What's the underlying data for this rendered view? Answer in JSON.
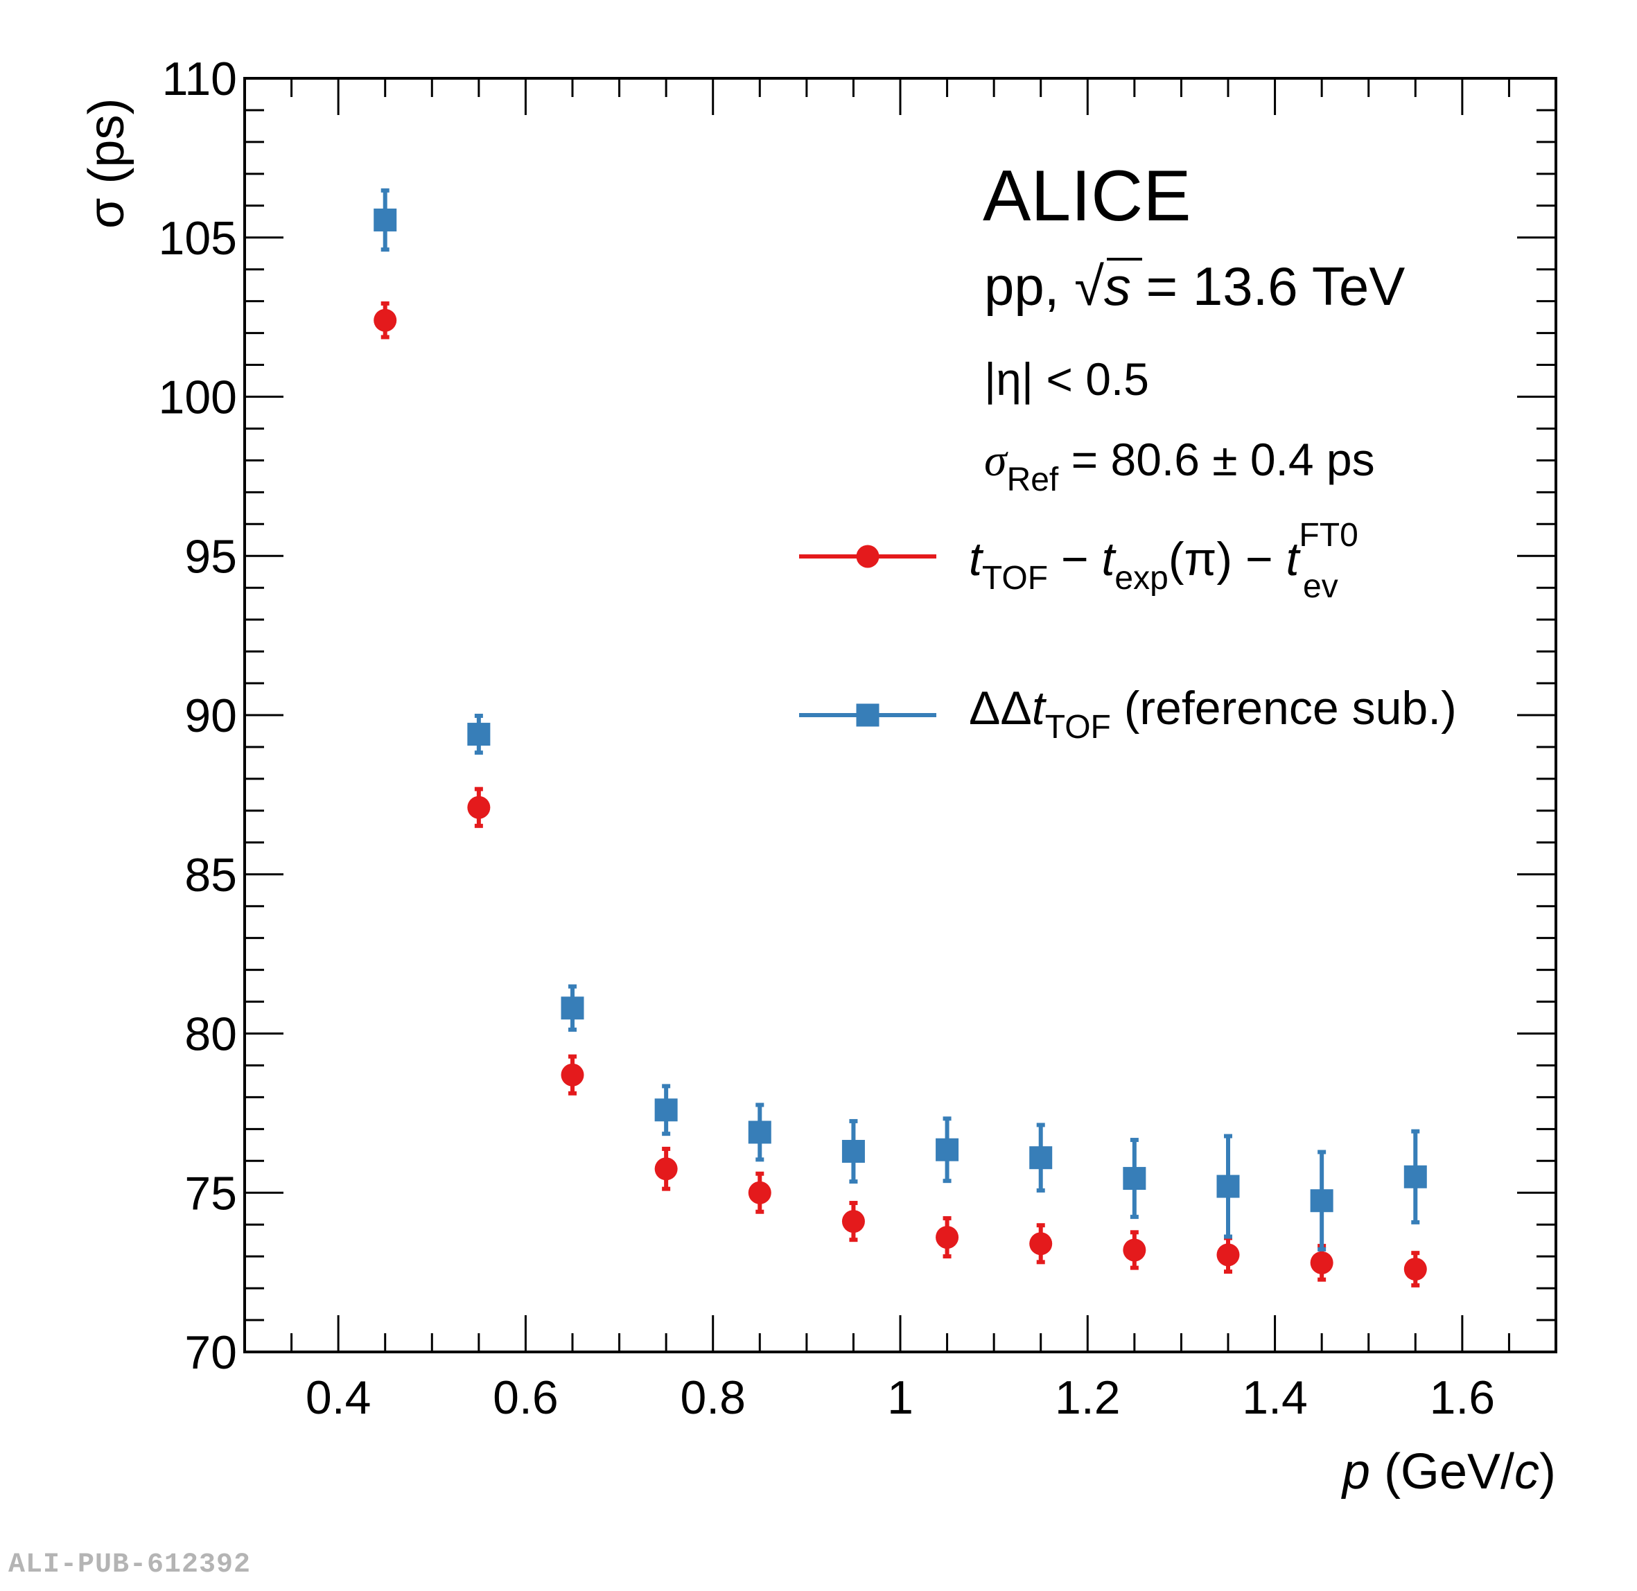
{
  "chart_data": {
    "type": "scatter",
    "title": "",
    "xlabel": "p (GeV/c)",
    "xlabel_parts": {
      "var": "p",
      "unit_open": " (GeV/",
      "unit_var": "c",
      "unit_close": ")"
    },
    "ylabel": "σ (ps)",
    "xlim": [
      0.3,
      1.7
    ],
    "ylim": [
      70,
      110
    ],
    "x_major_ticks": [
      0.4,
      0.6,
      0.8,
      1.0,
      1.2,
      1.4,
      1.6
    ],
    "x_tick_labels": [
      "0.4",
      "0.6",
      "0.8",
      "1",
      "1.2",
      "1.4",
      "1.6"
    ],
    "x_minor_step": 0.05,
    "y_major_ticks": [
      70,
      75,
      80,
      85,
      90,
      95,
      100,
      105,
      110
    ],
    "y_tick_labels": [
      "70",
      "75",
      "80",
      "85",
      "90",
      "95",
      "100",
      "105",
      "110"
    ],
    "y_minor_step": 1,
    "grid": false,
    "legend_placement": "right-middle",
    "annotations": {
      "experiment": "ALICE",
      "system_prefix": "pp, ",
      "sqrt_symbol": "√",
      "sqrt_var": "s",
      "system_suffix": " = 13.6 TeV",
      "eta_cut": "|η| < 0.5",
      "sigma_ref_symbol": "σ",
      "sigma_ref_sub": "Ref",
      "sigma_ref_value": " = 80.6 ± 0.4 ps"
    },
    "series": [
      {
        "name": "t_TOF − t_exp(π) − t_ev^FT0",
        "legend_parts": [
          "t",
          "TOF",
          " − ",
          "t",
          "exp",
          "(π) − ",
          "t",
          "FT0",
          "ev"
        ],
        "marker": "circle",
        "color": "#E41A1C",
        "x": [
          0.45,
          0.55,
          0.65,
          0.75,
          0.85,
          0.95,
          1.05,
          1.15,
          1.25,
          1.35,
          1.45,
          1.55
        ],
        "y": [
          102.4,
          87.1,
          78.7,
          75.75,
          75.0,
          74.1,
          73.6,
          73.4,
          73.2,
          73.05,
          72.8,
          72.6
        ],
        "err": [
          0.55,
          0.6,
          0.6,
          0.65,
          0.62,
          0.6,
          0.62,
          0.6,
          0.58,
          0.55,
          0.55,
          0.53
        ]
      },
      {
        "name": "ΔΔt_TOF (reference sub.)",
        "legend_parts": [
          "ΔΔ",
          "t",
          "TOF",
          " (reference sub.)"
        ],
        "marker": "square",
        "color": "#377EB8",
        "x": [
          0.45,
          0.55,
          0.65,
          0.75,
          0.85,
          0.95,
          1.05,
          1.15,
          1.25,
          1.35,
          1.45,
          1.55
        ],
        "y": [
          105.55,
          89.4,
          80.8,
          77.6,
          76.9,
          76.3,
          76.35,
          76.1,
          75.45,
          75.2,
          74.75,
          75.5
        ],
        "err": [
          0.95,
          0.6,
          0.7,
          0.77,
          0.88,
          0.97,
          1.0,
          1.05,
          1.23,
          1.6,
          1.55,
          1.45
        ]
      }
    ]
  },
  "watermark": "ALI-PUB-612392"
}
